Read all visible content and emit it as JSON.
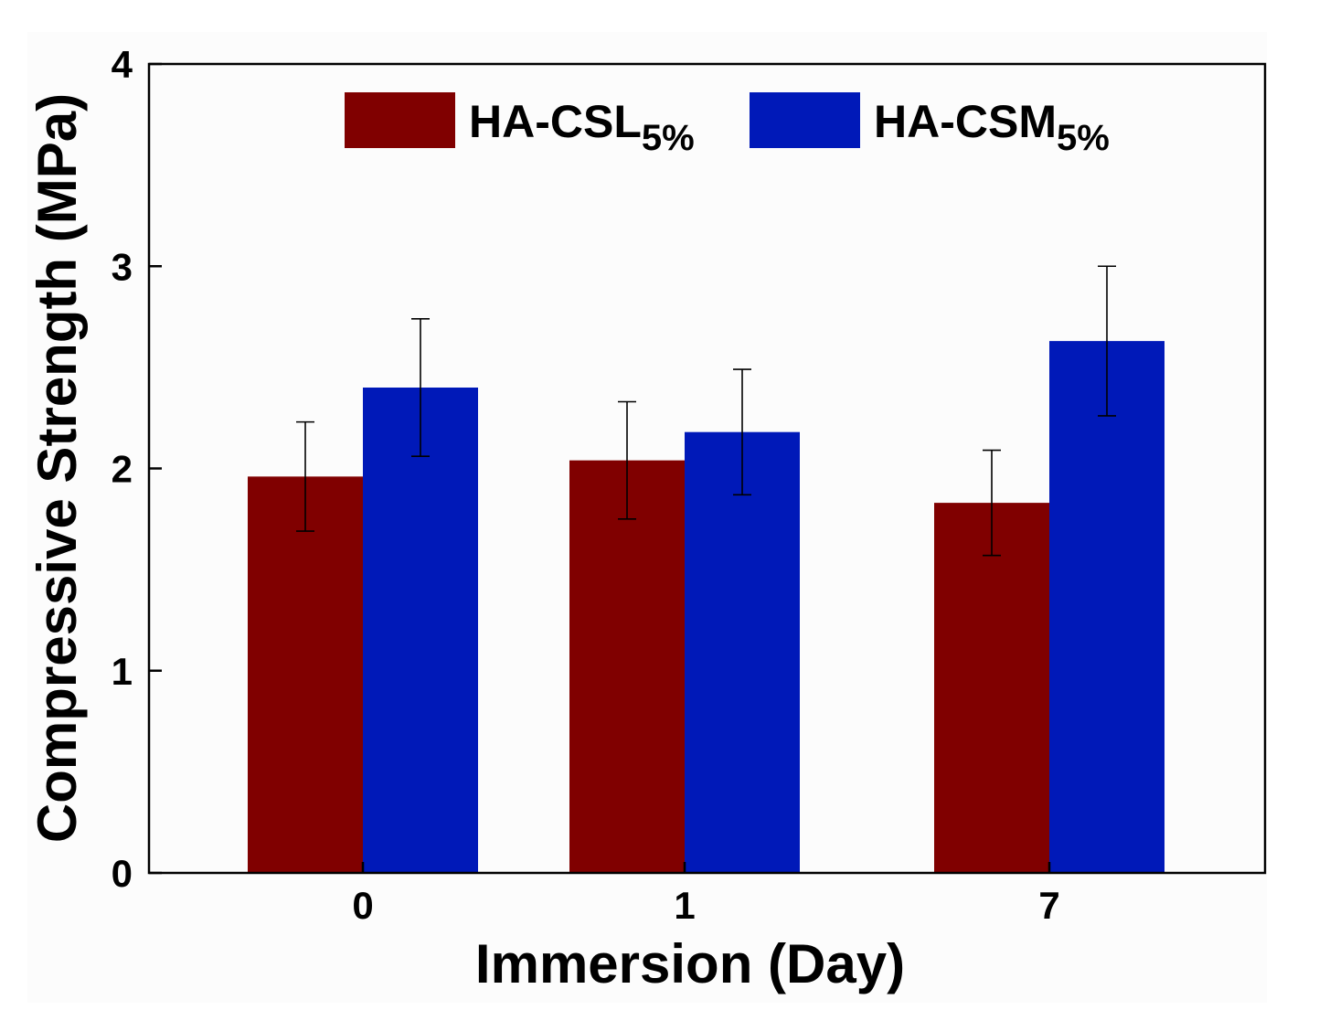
{
  "chart_data": {
    "type": "bar",
    "title": "",
    "xlabel": "Immersion (Day)",
    "ylabel": "Compressive Strength (MPa)",
    "categories": [
      "0",
      "1",
      "7"
    ],
    "ylim": [
      0,
      4
    ],
    "yticks": [
      0,
      1,
      2,
      3,
      4
    ],
    "grid": false,
    "legend_position": "top",
    "series": [
      {
        "name": "HA-CSL",
        "subscript": "5%",
        "color": "#800000",
        "values": [
          1.96,
          2.04,
          1.83
        ],
        "errors": [
          0.27,
          0.29,
          0.26
        ]
      },
      {
        "name": "HA-CSM",
        "subscript": "5%",
        "color": "#0019b8",
        "values": [
          2.4,
          2.18,
          2.63
        ],
        "errors": [
          0.34,
          0.31,
          0.37
        ]
      }
    ]
  }
}
